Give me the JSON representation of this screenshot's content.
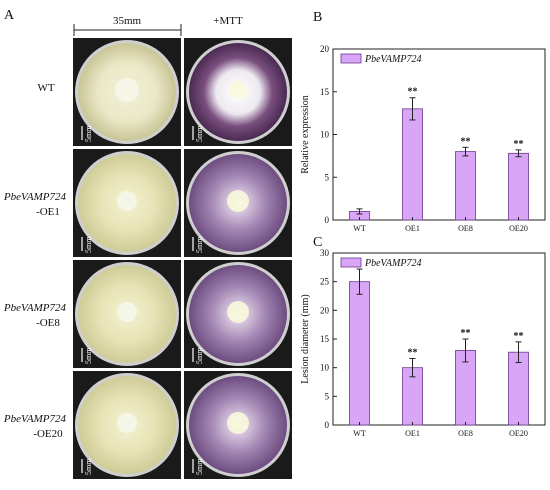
{
  "panel_a": {
    "label": "A",
    "scale_label": "35mm",
    "mtt_label": "+MTT",
    "scale_bar_label": "5mm",
    "rows": [
      {
        "name_italic": "",
        "name_suffix": "WT"
      },
      {
        "name_italic": "PbeVAMP724",
        "name_suffix": "-OE1"
      },
      {
        "name_italic": "PbeVAMP724",
        "name_suffix": "-OE8"
      },
      {
        "name_italic": "PbeVAMP724",
        "name_suffix": "-OE20"
      }
    ]
  },
  "colors": {
    "bar_fill": "#d9a6f7",
    "bar_stroke": "#6a3a8a",
    "plate_bg": "#1a1a1a",
    "culture_yellow": "#e6e3b3",
    "culture_purple": "#8a6a9a"
  },
  "chart_data": [
    {
      "panel": "B",
      "type": "bar",
      "categories": [
        "WT",
        "OE1",
        "OE8",
        "OE20"
      ],
      "values": [
        1.0,
        13.0,
        8.0,
        7.8
      ],
      "errors": [
        0.3,
        1.3,
        0.5,
        0.4
      ],
      "significance": [
        "",
        "**",
        "**",
        "**"
      ],
      "ylabel": "Relative expression",
      "xlabel": "",
      "ylim": [
        0,
        20
      ],
      "yticks": [
        0,
        5,
        10,
        15,
        20
      ],
      "legend": "PbeVAMP724",
      "legend_position": "top-left"
    },
    {
      "panel": "C",
      "type": "bar",
      "categories": [
        "WT",
        "OE1",
        "OE8",
        "OE20"
      ],
      "values": [
        25.0,
        10.0,
        13.0,
        12.7
      ],
      "errors": [
        2.2,
        1.6,
        2.0,
        1.8
      ],
      "significance": [
        "",
        "**",
        "**",
        "**"
      ],
      "ylabel": "Lesion diameter (mm)",
      "xlabel": "",
      "ylim": [
        0,
        30
      ],
      "yticks": [
        0,
        5,
        10,
        15,
        20,
        25,
        30
      ],
      "legend": "PbeVAMP724",
      "legend_position": "top-left"
    }
  ]
}
